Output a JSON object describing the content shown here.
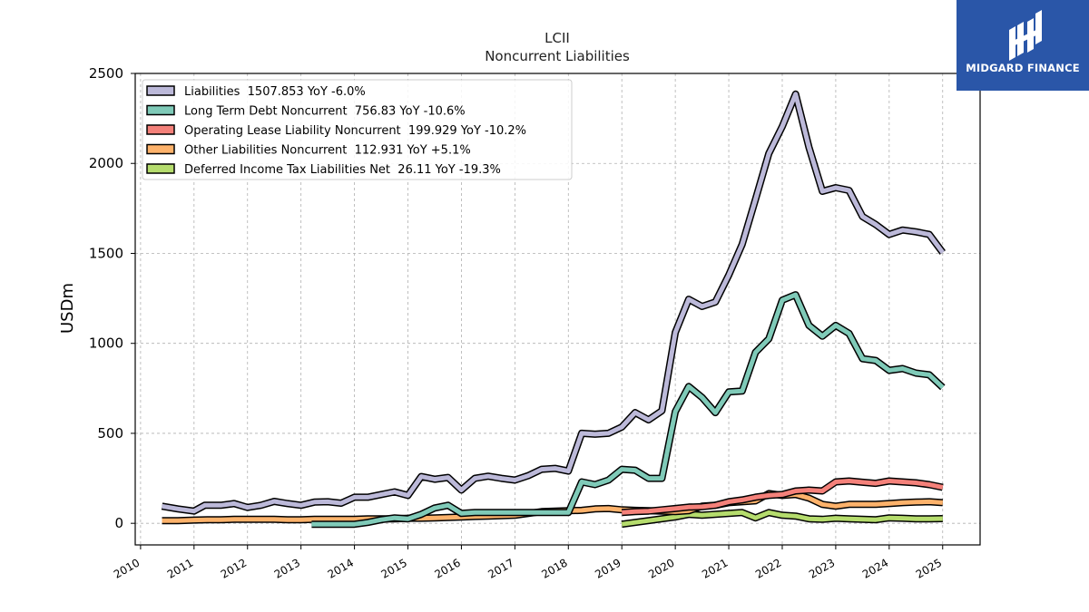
{
  "brand": {
    "name": "MIDGARD FINANCE",
    "background_color": "#2a56a8"
  },
  "chart_data": {
    "type": "line",
    "title": "LCII",
    "subtitle": "Noncurrent  Liabilities",
    "xlabel": "",
    "ylabel": "USDm",
    "xlim": [
      2009.9,
      2025.7
    ],
    "ylim": [
      -120,
      2500
    ],
    "x_ticks": [
      2010,
      2011,
      2012,
      2013,
      2014,
      2015,
      2016,
      2017,
      2018,
      2019,
      2020,
      2021,
      2022,
      2023,
      2024,
      2025
    ],
    "y_ticks": [
      0,
      500,
      1000,
      1500,
      2000,
      2500
    ],
    "grid": true,
    "legend_position": "top-left",
    "series": [
      {
        "name": "Liabilities  1507.853 YoY -6.0%",
        "color": "#bcb9d9",
        "points": [
          [
            2010.4,
            95
          ],
          [
            2010.7,
            80
          ],
          [
            2011.0,
            68
          ],
          [
            2011.2,
            100
          ],
          [
            2011.5,
            100
          ],
          [
            2011.75,
            110
          ],
          [
            2012.0,
            88
          ],
          [
            2012.25,
            100
          ],
          [
            2012.5,
            122
          ],
          [
            2012.75,
            110
          ],
          [
            2013.0,
            100
          ],
          [
            2013.25,
            118
          ],
          [
            2013.5,
            120
          ],
          [
            2013.75,
            112
          ],
          [
            2014.0,
            145
          ],
          [
            2014.25,
            145
          ],
          [
            2014.5,
            160
          ],
          [
            2014.75,
            175
          ],
          [
            2015.0,
            155
          ],
          [
            2015.25,
            260
          ],
          [
            2015.5,
            245
          ],
          [
            2015.75,
            255
          ],
          [
            2016.0,
            185
          ],
          [
            2016.25,
            250
          ],
          [
            2016.5,
            262
          ],
          [
            2016.75,
            250
          ],
          [
            2017.0,
            240
          ],
          [
            2017.25,
            265
          ],
          [
            2017.5,
            300
          ],
          [
            2017.75,
            305
          ],
          [
            2018.0,
            290
          ],
          [
            2018.25,
            500
          ],
          [
            2018.5,
            495
          ],
          [
            2018.75,
            500
          ],
          [
            2019.0,
            535
          ],
          [
            2019.25,
            615
          ],
          [
            2019.5,
            575
          ],
          [
            2019.75,
            625
          ],
          [
            2020.0,
            1060
          ],
          [
            2020.25,
            1245
          ],
          [
            2020.5,
            1205
          ],
          [
            2020.75,
            1230
          ],
          [
            2021.0,
            1380
          ],
          [
            2021.25,
            1550
          ],
          [
            2021.5,
            1800
          ],
          [
            2021.75,
            2055
          ],
          [
            2022.0,
            2205
          ],
          [
            2022.25,
            2385
          ],
          [
            2022.5,
            2090
          ],
          [
            2022.75,
            1845
          ],
          [
            2023.0,
            1865
          ],
          [
            2023.25,
            1850
          ],
          [
            2023.5,
            1705
          ],
          [
            2023.75,
            1660
          ],
          [
            2024.0,
            1605
          ],
          [
            2024.25,
            1630
          ],
          [
            2024.5,
            1620
          ],
          [
            2024.75,
            1605
          ],
          [
            2025.0,
            1505
          ]
        ]
      },
      {
        "name": "Long Term Debt Noncurrent  756.83 YoY -10.6%",
        "color": "#7fcab8",
        "points": [
          [
            2013.2,
            -5
          ],
          [
            2013.5,
            -5
          ],
          [
            2013.75,
            -5
          ],
          [
            2014.0,
            -5
          ],
          [
            2014.25,
            5
          ],
          [
            2014.5,
            20
          ],
          [
            2014.75,
            30
          ],
          [
            2015.0,
            25
          ],
          [
            2015.25,
            50
          ],
          [
            2015.5,
            85
          ],
          [
            2015.75,
            100
          ],
          [
            2016.0,
            55
          ],
          [
            2016.25,
            60
          ],
          [
            2016.5,
            60
          ],
          [
            2016.75,
            60
          ],
          [
            2017.0,
            60
          ],
          [
            2017.25,
            60
          ],
          [
            2017.5,
            60
          ],
          [
            2017.75,
            60
          ],
          [
            2018.0,
            60
          ],
          [
            2018.25,
            230
          ],
          [
            2018.5,
            215
          ],
          [
            2018.75,
            240
          ],
          [
            2019.0,
            300
          ],
          [
            2019.25,
            295
          ],
          [
            2019.5,
            250
          ],
          [
            2019.75,
            250
          ],
          [
            2020.0,
            620
          ],
          [
            2020.25,
            760
          ],
          [
            2020.5,
            700
          ],
          [
            2020.75,
            615
          ],
          [
            2021.0,
            730
          ],
          [
            2021.25,
            735
          ],
          [
            2021.5,
            950
          ],
          [
            2021.75,
            1025
          ],
          [
            2022.0,
            1240
          ],
          [
            2022.25,
            1270
          ],
          [
            2022.5,
            1100
          ],
          [
            2022.75,
            1040
          ],
          [
            2023.0,
            1100
          ],
          [
            2023.25,
            1055
          ],
          [
            2023.5,
            915
          ],
          [
            2023.75,
            905
          ],
          [
            2024.0,
            850
          ],
          [
            2024.25,
            860
          ],
          [
            2024.5,
            835
          ],
          [
            2024.75,
            825
          ],
          [
            2025.0,
            755
          ]
        ]
      },
      {
        "name": "Operating Lease Liability Noncurrent  199.929 YoY -10.2%",
        "color": "#f4817a",
        "points": [
          [
            2019.0,
            60
          ],
          [
            2019.25,
            65
          ],
          [
            2019.5,
            68
          ],
          [
            2019.75,
            75
          ],
          [
            2020.0,
            82
          ],
          [
            2020.25,
            90
          ],
          [
            2020.5,
            92
          ],
          [
            2020.75,
            100
          ],
          [
            2021.0,
            120
          ],
          [
            2021.25,
            130
          ],
          [
            2021.5,
            145
          ],
          [
            2021.75,
            155
          ],
          [
            2022.0,
            160
          ],
          [
            2022.25,
            180
          ],
          [
            2022.5,
            185
          ],
          [
            2022.75,
            180
          ],
          [
            2023.0,
            230
          ],
          [
            2023.25,
            235
          ],
          [
            2023.5,
            228
          ],
          [
            2023.75,
            222
          ],
          [
            2024.0,
            235
          ],
          [
            2024.25,
            230
          ],
          [
            2024.5,
            225
          ],
          [
            2024.75,
            215
          ],
          [
            2025.0,
            200
          ]
        ]
      },
      {
        "name": "Other Liabilities Noncurrent  112.931 YoY +5.1%",
        "color": "#fdb26b",
        "points": [
          [
            2010.4,
            15
          ],
          [
            2010.7,
            15
          ],
          [
            2011.0,
            18
          ],
          [
            2011.25,
            20
          ],
          [
            2011.5,
            20
          ],
          [
            2011.75,
            22
          ],
          [
            2012.0,
            22
          ],
          [
            2012.25,
            22
          ],
          [
            2012.5,
            22
          ],
          [
            2012.75,
            20
          ],
          [
            2013.0,
            20
          ],
          [
            2013.25,
            22
          ],
          [
            2013.5,
            22
          ],
          [
            2013.75,
            22
          ],
          [
            2014.0,
            22
          ],
          [
            2014.25,
            25
          ],
          [
            2014.5,
            25
          ],
          [
            2014.75,
            25
          ],
          [
            2015.0,
            28
          ],
          [
            2015.25,
            28
          ],
          [
            2015.5,
            30
          ],
          [
            2015.75,
            32
          ],
          [
            2016.0,
            35
          ],
          [
            2016.25,
            38
          ],
          [
            2016.5,
            40
          ],
          [
            2016.75,
            42
          ],
          [
            2017.0,
            45
          ],
          [
            2017.25,
            55
          ],
          [
            2017.5,
            65
          ],
          [
            2017.75,
            68
          ],
          [
            2018.0,
            70
          ],
          [
            2018.25,
            72
          ],
          [
            2018.5,
            80
          ],
          [
            2018.75,
            82
          ],
          [
            2019.0,
            75
          ],
          [
            2019.25,
            72
          ],
          [
            2019.5,
            70
          ],
          [
            2019.75,
            68
          ],
          [
            2020.0,
            65
          ],
          [
            2020.25,
            70
          ],
          [
            2020.5,
            95
          ],
          [
            2020.75,
            100
          ],
          [
            2021.0,
            115
          ],
          [
            2021.25,
            120
          ],
          [
            2021.5,
            125
          ],
          [
            2021.75,
            165
          ],
          [
            2022.0,
            155
          ],
          [
            2022.25,
            160
          ],
          [
            2022.5,
            140
          ],
          [
            2022.75,
            105
          ],
          [
            2023.0,
            95
          ],
          [
            2023.25,
            105
          ],
          [
            2023.5,
            105
          ],
          [
            2023.75,
            105
          ],
          [
            2024.0,
            110
          ],
          [
            2024.25,
            115
          ],
          [
            2024.5,
            118
          ],
          [
            2024.75,
            120
          ],
          [
            2025.0,
            115
          ]
        ]
      },
      {
        "name": "Deferred Income Tax Liabilities Net  26.11 YoY -19.3%",
        "color": "#b5dc6d",
        "points": [
          [
            2019.0,
            -5
          ],
          [
            2019.25,
            5
          ],
          [
            2019.5,
            15
          ],
          [
            2019.75,
            25
          ],
          [
            2020.0,
            35
          ],
          [
            2020.25,
            50
          ],
          [
            2020.5,
            45
          ],
          [
            2020.75,
            50
          ],
          [
            2021.0,
            55
          ],
          [
            2021.25,
            60
          ],
          [
            2021.5,
            30
          ],
          [
            2021.75,
            60
          ],
          [
            2022.0,
            45
          ],
          [
            2022.25,
            40
          ],
          [
            2022.5,
            25
          ],
          [
            2022.75,
            22
          ],
          [
            2023.0,
            28
          ],
          [
            2023.25,
            25
          ],
          [
            2023.5,
            22
          ],
          [
            2023.75,
            20
          ],
          [
            2024.0,
            30
          ],
          [
            2024.25,
            28
          ],
          [
            2024.5,
            25
          ],
          [
            2024.75,
            25
          ],
          [
            2025.0,
            26
          ]
        ]
      }
    ]
  }
}
